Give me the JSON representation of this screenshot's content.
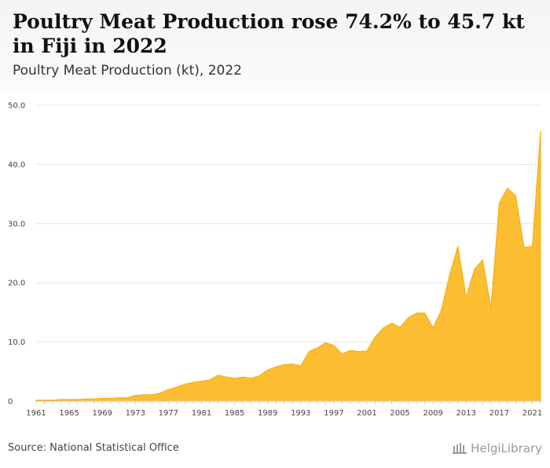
{
  "header": {
    "title": "Poultry Meat Production rose 74.2% to 45.7 kt in Fiji in 2022",
    "subtitle": "Poultry Meat Production (kt), 2022"
  },
  "footer": {
    "source": "Source: National Statistical Office",
    "brand": "HelgiLibrary",
    "brand_icon": "library-columns-icon"
  },
  "colors": {
    "area_fill": "#fbbd31",
    "area_stroke": "#f5ad12",
    "grid": "#e6e6e6",
    "axis": "#cccccc"
  },
  "chart_data": {
    "type": "area",
    "title": "Poultry Meat Production (kt), 2022",
    "xlabel": "",
    "ylabel": "",
    "ylim": [
      0,
      50
    ],
    "yticks": [
      "0",
      "10.0",
      "20.0",
      "30.0",
      "40.0",
      "50.0"
    ],
    "xticks": [
      "1961",
      "1965",
      "1969",
      "1973",
      "1977",
      "1981",
      "1985",
      "1989",
      "1993",
      "1997",
      "2001",
      "2005",
      "2009",
      "2013",
      "2017",
      "2021"
    ],
    "grid": true,
    "legend": "none",
    "series": [
      {
        "name": "Poultry Meat Production (kt)",
        "x": [
          1961,
          1962,
          1963,
          1964,
          1965,
          1966,
          1967,
          1968,
          1969,
          1970,
          1971,
          1972,
          1973,
          1974,
          1975,
          1976,
          1977,
          1978,
          1979,
          1980,
          1981,
          1982,
          1983,
          1984,
          1985,
          1986,
          1987,
          1988,
          1989,
          1990,
          1991,
          1992,
          1993,
          1994,
          1995,
          1996,
          1997,
          1998,
          1999,
          2000,
          2001,
          2002,
          2003,
          2004,
          2005,
          2006,
          2007,
          2008,
          2009,
          2010,
          2011,
          2012,
          2013,
          2014,
          2015,
          2016,
          2017,
          2018,
          2019,
          2020,
          2021,
          2022
        ],
        "values": [
          0.2,
          0.2,
          0.2,
          0.3,
          0.3,
          0.3,
          0.4,
          0.4,
          0.5,
          0.5,
          0.6,
          0.6,
          1.0,
          1.1,
          1.1,
          1.4,
          2.0,
          2.4,
          2.9,
          3.2,
          3.4,
          3.6,
          4.4,
          4.1,
          3.9,
          4.1,
          3.9,
          4.3,
          5.3,
          5.8,
          6.2,
          6.3,
          6.0,
          8.4,
          9.0,
          9.9,
          9.4,
          8.0,
          8.6,
          8.4,
          8.5,
          10.9,
          12.4,
          13.2,
          12.5,
          14.1,
          14.9,
          14.9,
          12.4,
          15.4,
          21.4,
          26.2,
          17.6,
          22.3,
          23.9,
          15.8,
          33.5,
          36.0,
          34.7,
          26.0,
          26.2,
          45.7
        ]
      }
    ]
  }
}
